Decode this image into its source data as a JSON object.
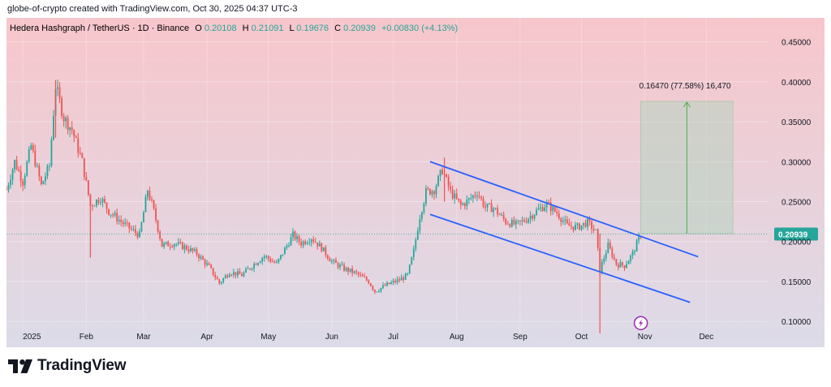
{
  "header": {
    "watermark": "globe-of-crypto created with TradingView.com, Oct 30, 2025 04:37 UTC-3"
  },
  "symbol": {
    "name": "Hedera Hashgraph / TetherUS · 1D · Binance",
    "o_label": "O",
    "o_value": "0.20108",
    "h_label": "H",
    "h_value": "0.21091",
    "l_label": "L",
    "l_value": "0.19676",
    "c_label": "C",
    "c_value": "0.20939",
    "change": "+0.00830 (+4.13%)"
  },
  "colors": {
    "up": "#26a69a",
    "down": "#ef5350",
    "channel": "#2962ff",
    "measure": "#4caf50",
    "bg_top": "#f7c6cb",
    "bg_bottom": "#dcdbe8",
    "price_tag": "#26a69a",
    "lightning": "#9c27b0"
  },
  "footer": {
    "brand": "TradingView",
    "logo_icon": "tradingview-logo-icon"
  },
  "chart_data": {
    "type": "candlestick",
    "ylim": [
      0.085,
      0.48
    ],
    "yticks": [
      {
        "label": "0.45000",
        "value": 0.45
      },
      {
        "label": "0.40000",
        "value": 0.4
      },
      {
        "label": "0.35000",
        "value": 0.35
      },
      {
        "label": "0.30000",
        "value": 0.3
      },
      {
        "label": "0.25000",
        "value": 0.25
      },
      {
        "label": "0.20000",
        "value": 0.2
      },
      {
        "label": "0.15000",
        "value": 0.15
      },
      {
        "label": "0.10000",
        "value": 0.1
      }
    ],
    "x_domain": [
      "2024-12-24",
      "2025-12-31"
    ],
    "xticks": [
      {
        "label": "2025",
        "date": "2025-01-01"
      },
      {
        "label": "Feb",
        "date": "2025-02-01"
      },
      {
        "label": "Mar",
        "date": "2025-03-01"
      },
      {
        "label": "Apr",
        "date": "2025-04-01"
      },
      {
        "label": "May",
        "date": "2025-05-01"
      },
      {
        "label": "Jun",
        "date": "2025-06-01"
      },
      {
        "label": "Jul",
        "date": "2025-07-01"
      },
      {
        "label": "Aug",
        "date": "2025-08-01"
      },
      {
        "label": "Sep",
        "date": "2025-09-01"
      },
      {
        "label": "Oct",
        "date": "2025-10-01"
      },
      {
        "label": "Nov",
        "date": "2025-11-01"
      },
      {
        "label": "Dec",
        "date": "2025-12-01"
      }
    ],
    "price_path": [
      [
        "2024-12-24",
        0.265
      ],
      [
        "2024-12-28",
        0.3
      ],
      [
        "2025-01-01",
        0.275
      ],
      [
        "2025-01-05",
        0.32
      ],
      [
        "2025-01-10",
        0.27
      ],
      [
        "2025-01-14",
        0.295
      ],
      [
        "2025-01-17",
        0.395
      ],
      [
        "2025-01-21",
        0.355
      ],
      [
        "2025-01-25",
        0.34
      ],
      [
        "2025-01-30",
        0.3
      ],
      [
        "2025-02-03",
        0.245
      ],
      [
        "2025-02-08",
        0.255
      ],
      [
        "2025-02-12",
        0.238
      ],
      [
        "2025-02-18",
        0.225
      ],
      [
        "2025-02-23",
        0.215
      ],
      [
        "2025-02-27",
        0.208
      ],
      [
        "2025-03-03",
        0.265
      ],
      [
        "2025-03-06",
        0.238
      ],
      [
        "2025-03-10",
        0.195
      ],
      [
        "2025-03-16",
        0.198
      ],
      [
        "2025-03-22",
        0.192
      ],
      [
        "2025-03-27",
        0.185
      ],
      [
        "2025-04-02",
        0.168
      ],
      [
        "2025-04-07",
        0.148
      ],
      [
        "2025-04-12",
        0.162
      ],
      [
        "2025-04-18",
        0.158
      ],
      [
        "2025-04-24",
        0.172
      ],
      [
        "2025-04-29",
        0.182
      ],
      [
        "2025-05-05",
        0.172
      ],
      [
        "2025-05-10",
        0.195
      ],
      [
        "2025-05-13",
        0.208
      ],
      [
        "2025-05-17",
        0.198
      ],
      [
        "2025-05-22",
        0.205
      ],
      [
        "2025-05-27",
        0.192
      ],
      [
        "2025-06-01",
        0.175
      ],
      [
        "2025-06-07",
        0.166
      ],
      [
        "2025-06-13",
        0.16
      ],
      [
        "2025-06-19",
        0.15
      ],
      [
        "2025-06-22",
        0.138
      ],
      [
        "2025-06-28",
        0.146
      ],
      [
        "2025-07-04",
        0.152
      ],
      [
        "2025-07-08",
        0.158
      ],
      [
        "2025-07-11",
        0.188
      ],
      [
        "2025-07-14",
        0.232
      ],
      [
        "2025-07-17",
        0.262
      ],
      [
        "2025-07-21",
        0.265
      ],
      [
        "2025-07-25",
        0.29
      ],
      [
        "2025-07-29",
        0.262
      ],
      [
        "2025-08-03",
        0.245
      ],
      [
        "2025-08-07",
        0.252
      ],
      [
        "2025-08-11",
        0.262
      ],
      [
        "2025-08-15",
        0.243
      ],
      [
        "2025-08-19",
        0.242
      ],
      [
        "2025-08-25",
        0.225
      ],
      [
        "2025-08-30",
        0.221
      ],
      [
        "2025-09-04",
        0.228
      ],
      [
        "2025-09-09",
        0.238
      ],
      [
        "2025-09-14",
        0.247
      ],
      [
        "2025-09-19",
        0.236
      ],
      [
        "2025-09-24",
        0.22
      ],
      [
        "2025-09-29",
        0.218
      ],
      [
        "2025-10-04",
        0.224
      ],
      [
        "2025-10-08",
        0.212
      ],
      [
        "2025-10-10",
        0.165
      ],
      [
        "2025-10-14",
        0.195
      ],
      [
        "2025-10-18",
        0.172
      ],
      [
        "2025-10-22",
        0.17
      ],
      [
        "2025-10-26",
        0.185
      ],
      [
        "2025-10-30",
        0.209
      ]
    ],
    "wicks": [
      {
        "date": "2025-01-17",
        "high": 0.402,
        "low": 0.33
      },
      {
        "date": "2025-02-03",
        "high": 0.26,
        "low": 0.18
      },
      {
        "date": "2025-10-10",
        "high": 0.21,
        "low": 0.085
      },
      {
        "date": "2025-07-26",
        "high": 0.305,
        "low": 0.25
      }
    ],
    "channel_upper": {
      "from": [
        "2025-07-19",
        0.3
      ],
      "to": [
        "2025-11-27",
        0.181
      ]
    },
    "channel_lower": {
      "from": [
        "2025-07-19",
        0.234
      ],
      "to": [
        "2025-11-23",
        0.124
      ]
    },
    "measure_box": {
      "from_date": "2025-10-30",
      "to_date": "2025-12-14",
      "bottom": 0.21,
      "top": 0.3755,
      "label": "0.16470 (77.58%) 16,470"
    },
    "current_price": {
      "label": "0.20939",
      "value": 0.20939
    },
    "event_marker": {
      "date": "2025-10-30",
      "value": 0.098
    }
  }
}
